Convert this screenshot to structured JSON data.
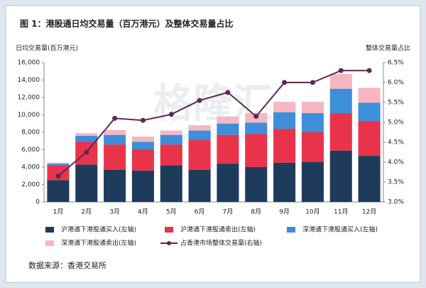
{
  "chart_data": {
    "type": "bar",
    "title": "图 1：港股通日均交易量（百万港元）及整体交易量占比",
    "y_label": "日均交易量(百万港元)",
    "y2_label": "整体交易量占比",
    "watermark": "格隆汇",
    "watermark_url": "gelonghui.com",
    "source": "数据来源：香港交易所",
    "categories": [
      "1月",
      "2月",
      "3月",
      "4月",
      "5月",
      "6月",
      "7月",
      "8月",
      "9月",
      "10月",
      "11月",
      "12月"
    ],
    "stacked": true,
    "series": [
      {
        "name": "沪港通下港股通买入(左轴)",
        "color": "#1f3b5c",
        "values": [
          2500,
          4300,
          3700,
          3600,
          4200,
          3700,
          4400,
          4000,
          4500,
          4600,
          5900,
          5300
        ]
      },
      {
        "name": "沪港通下港股通卖出(左轴)",
        "color": "#e8334a",
        "values": [
          1700,
          2600,
          2900,
          2400,
          2400,
          3400,
          3300,
          3800,
          3900,
          3400,
          4300,
          4000
        ]
      },
      {
        "name": "深港通下港股通买入(左轴)",
        "color": "#3d8fd9",
        "values": [
          200,
          700,
          1100,
          900,
          1100,
          1100,
          1300,
          1300,
          1900,
          2200,
          2800,
          2100
        ]
      },
      {
        "name": "深港通下港股通卖出(左轴)",
        "color": "#f7b7c0",
        "values": [
          100,
          300,
          550,
          600,
          500,
          600,
          800,
          1100,
          1200,
          1300,
          1700,
          1700
        ]
      },
      {
        "name": "占香港市场整体交易量(右轴)",
        "color": "#5a2a55",
        "type": "line",
        "axis": "y2",
        "values": [
          3.65,
          4.25,
          5.1,
          5.05,
          5.2,
          5.55,
          5.75,
          5.15,
          6.0,
          6.0,
          6.3,
          6.3
        ]
      }
    ],
    "ylim": [
      0,
      16000
    ],
    "yticks": [
      0,
      {
        "value": 2000,
        "label": "2,000"
      },
      {
        "value": 4000,
        "label": "4,000"
      },
      {
        "value": 6000,
        "label": "6,000"
      },
      {
        "value": 8000,
        "label": "8,000"
      },
      {
        "value": 10000,
        "label": "10,000"
      },
      {
        "value": 12000,
        "label": "12,000"
      },
      {
        "value": 14000,
        "label": "14,000"
      },
      {
        "value": 16000,
        "label": "16,000"
      }
    ],
    "y2lim": [
      3.0,
      6.5
    ],
    "y2ticks": [
      {
        "value": 3.0,
        "label": "3.0%"
      },
      {
        "value": 3.5,
        "label": "3.5%"
      },
      {
        "value": 4.0,
        "label": "4.0%"
      },
      {
        "value": 4.5,
        "label": "4.5%"
      },
      {
        "value": 5.0,
        "label": "5.0%"
      },
      {
        "value": 5.5,
        "label": "5.5%"
      },
      {
        "value": 6.0,
        "label": "6.0%"
      },
      {
        "value": 6.5,
        "label": "6.5%"
      }
    ],
    "legend": "bottom"
  }
}
